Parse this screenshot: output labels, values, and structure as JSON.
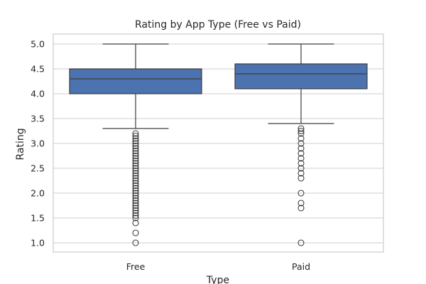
{
  "chart_data": {
    "type": "box",
    "title": "Rating by App Type (Free vs Paid)",
    "xlabel": "Type",
    "ylabel": "Rating",
    "categories": [
      "Free",
      "Paid"
    ],
    "ylim": [
      0.8,
      5.2
    ],
    "yticks": [
      "1.0",
      "1.5",
      "2.0",
      "2.5",
      "3.0",
      "3.5",
      "4.0",
      "4.5",
      "5.0"
    ],
    "grid": true,
    "box_color": "#4c72b0",
    "series": [
      {
        "whisker_low": 3.3,
        "q1": 4.0,
        "median": 4.3,
        "q3": 4.5,
        "whisker_high": 5.0,
        "outliers": [
          3.2,
          3.15,
          3.1,
          3.05,
          3.0,
          2.95,
          2.9,
          2.85,
          2.8,
          2.75,
          2.7,
          2.65,
          2.6,
          2.55,
          2.5,
          2.45,
          2.4,
          2.35,
          2.3,
          2.25,
          2.2,
          2.15,
          2.1,
          2.05,
          2.0,
          1.95,
          1.9,
          1.85,
          1.8,
          1.75,
          1.7,
          1.65,
          1.6,
          1.55,
          1.5,
          1.4,
          1.2,
          1.0
        ]
      },
      {
        "whisker_low": 3.4,
        "q1": 4.1,
        "median": 4.4,
        "q3": 4.6,
        "whisker_high": 5.0,
        "outliers": [
          3.3,
          3.25,
          3.2,
          3.1,
          3.0,
          2.9,
          2.8,
          2.7,
          2.6,
          2.5,
          2.4,
          2.3,
          2.0,
          1.8,
          1.7,
          1.0
        ]
      }
    ]
  }
}
